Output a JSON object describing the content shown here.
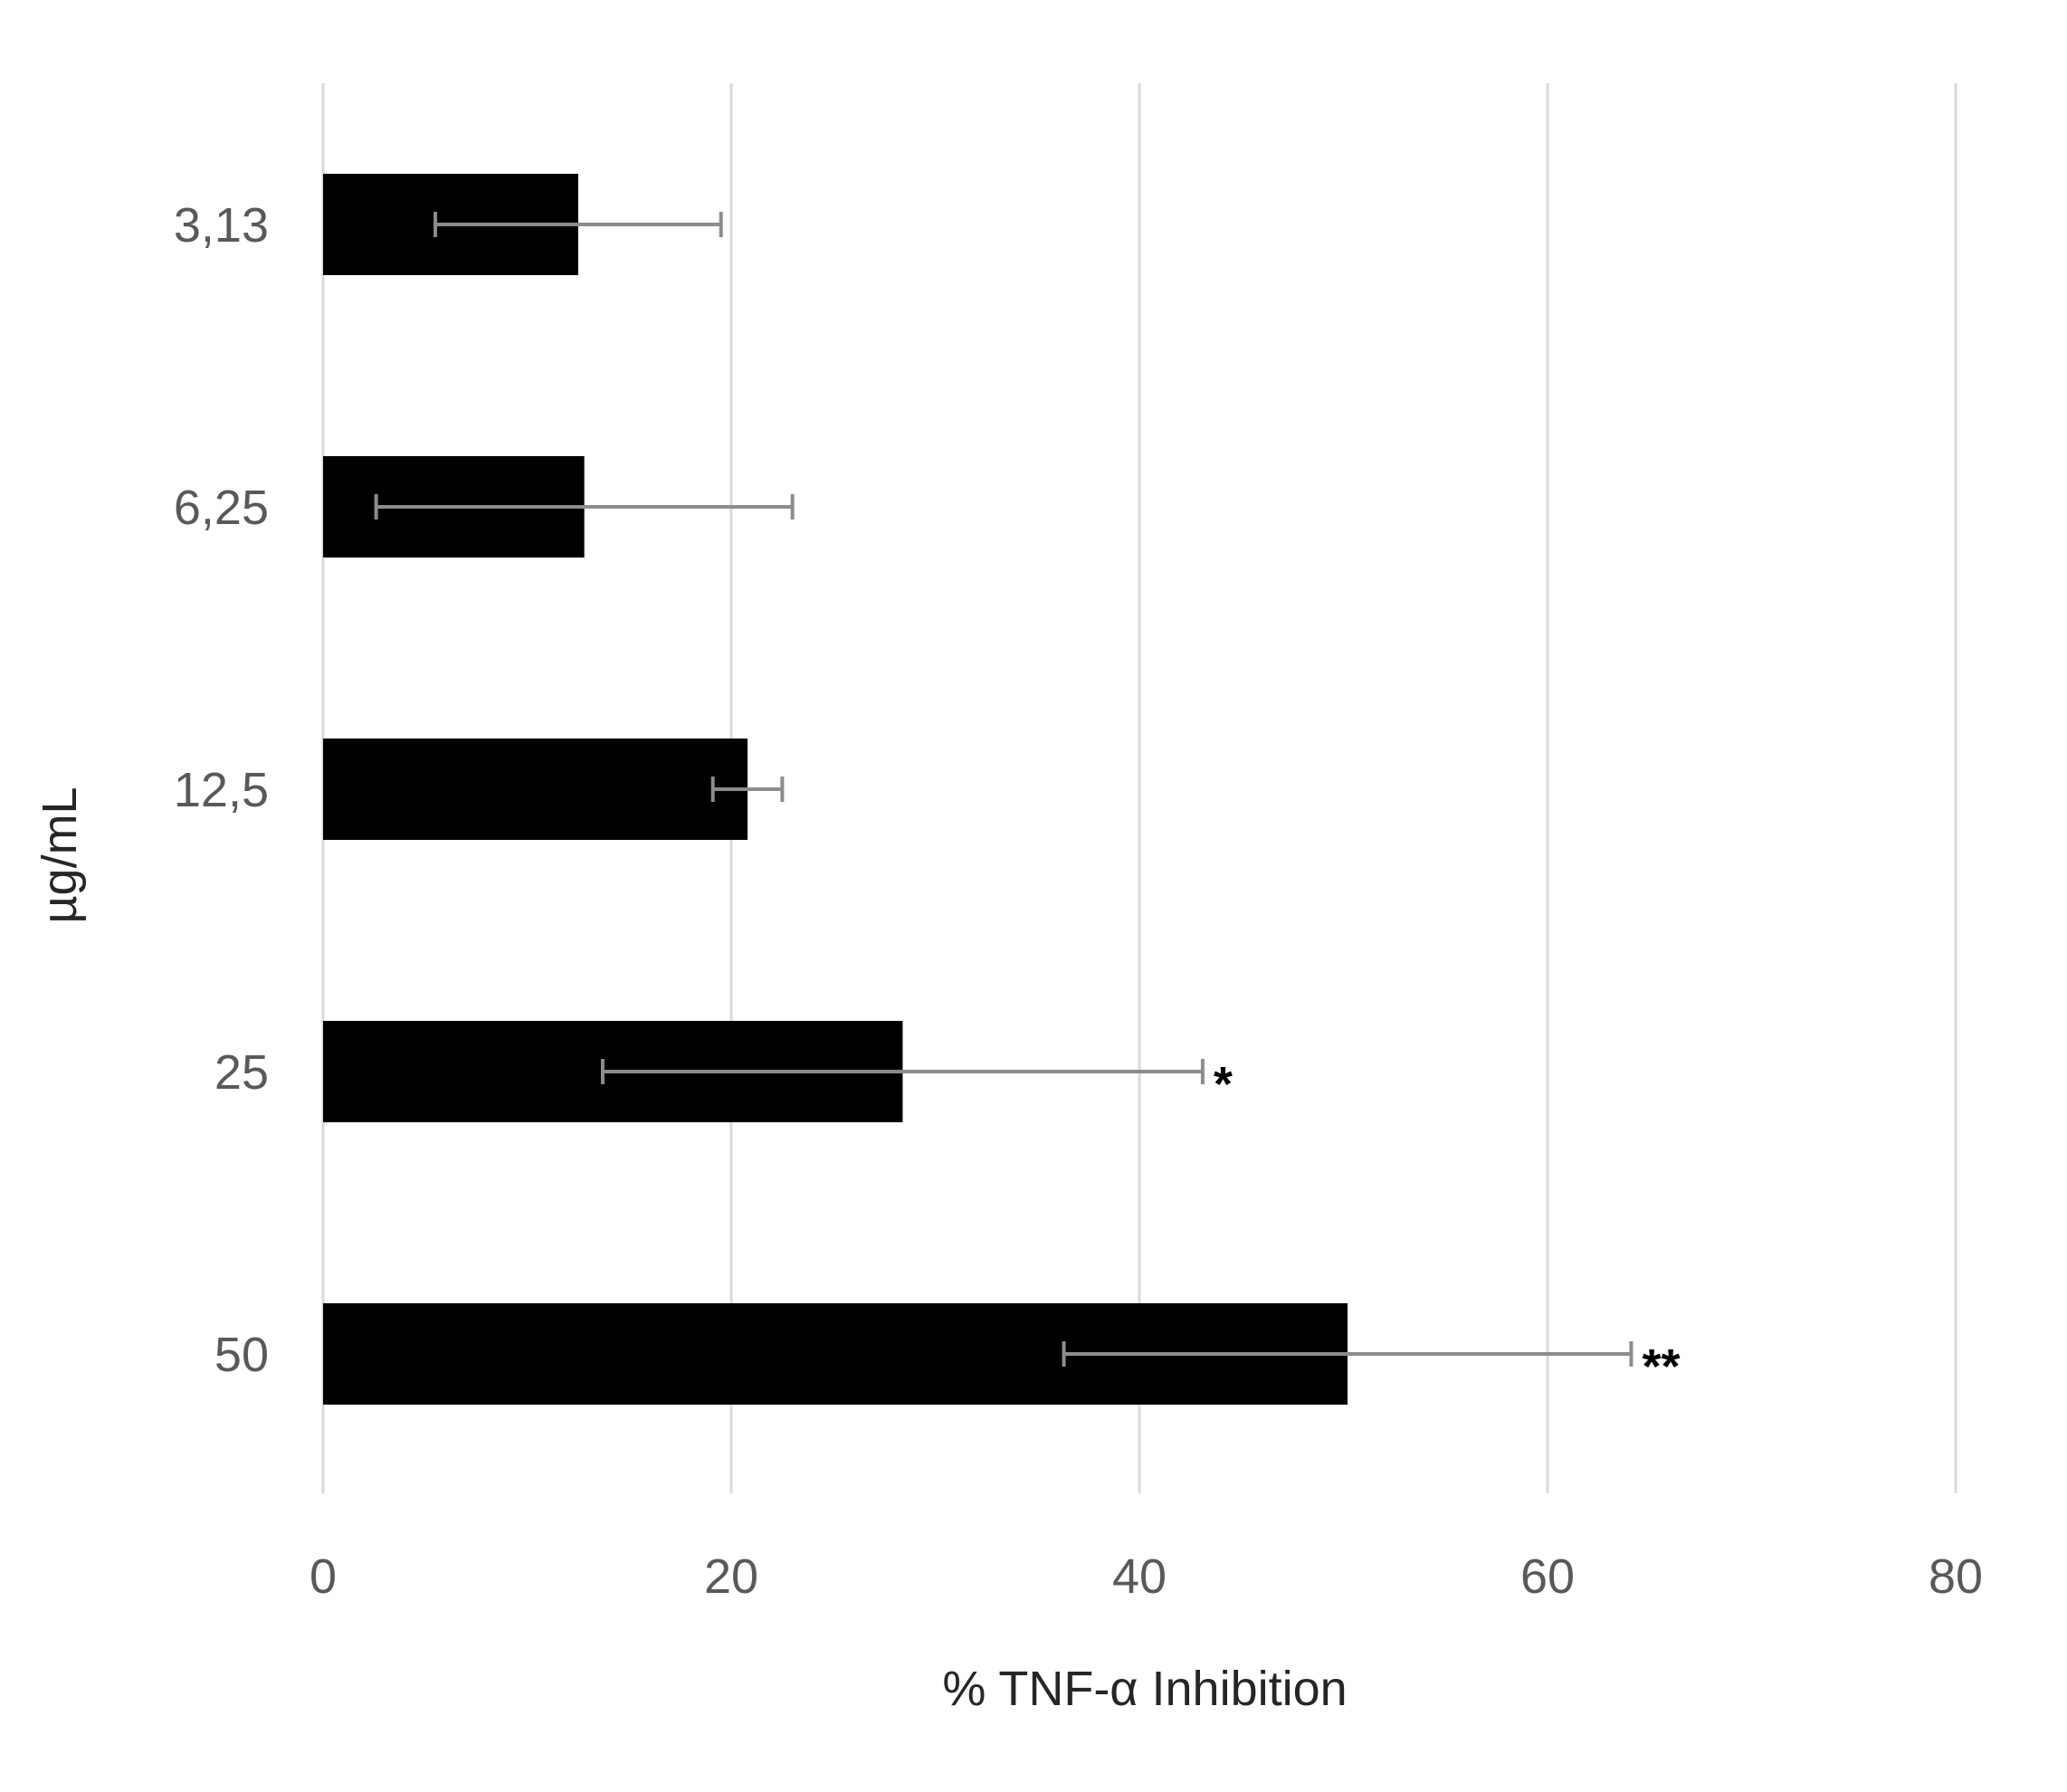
{
  "chart_data": {
    "type": "bar",
    "orientation": "horizontal",
    "xlabel": "% TNF-α Inhibition",
    "ylabel": "µg/mL",
    "xlim": [
      0,
      80
    ],
    "x_ticks": [
      "0",
      "20",
      "40",
      "60",
      "80"
    ],
    "grid": "vertical",
    "categories": [
      "3,13",
      "6,25",
      "12,5",
      "25",
      "50"
    ],
    "values": [
      12.5,
      12.8,
      20.8,
      28.4,
      50.2
    ],
    "error": [
      7.0,
      10.2,
      1.7,
      14.7,
      13.9
    ],
    "annotations": [
      "",
      "",
      "",
      "*",
      "**"
    ],
    "colors": {
      "bar": "#000000",
      "error_bar": "#8c8c8c",
      "grid": "#d9d9d9"
    }
  }
}
